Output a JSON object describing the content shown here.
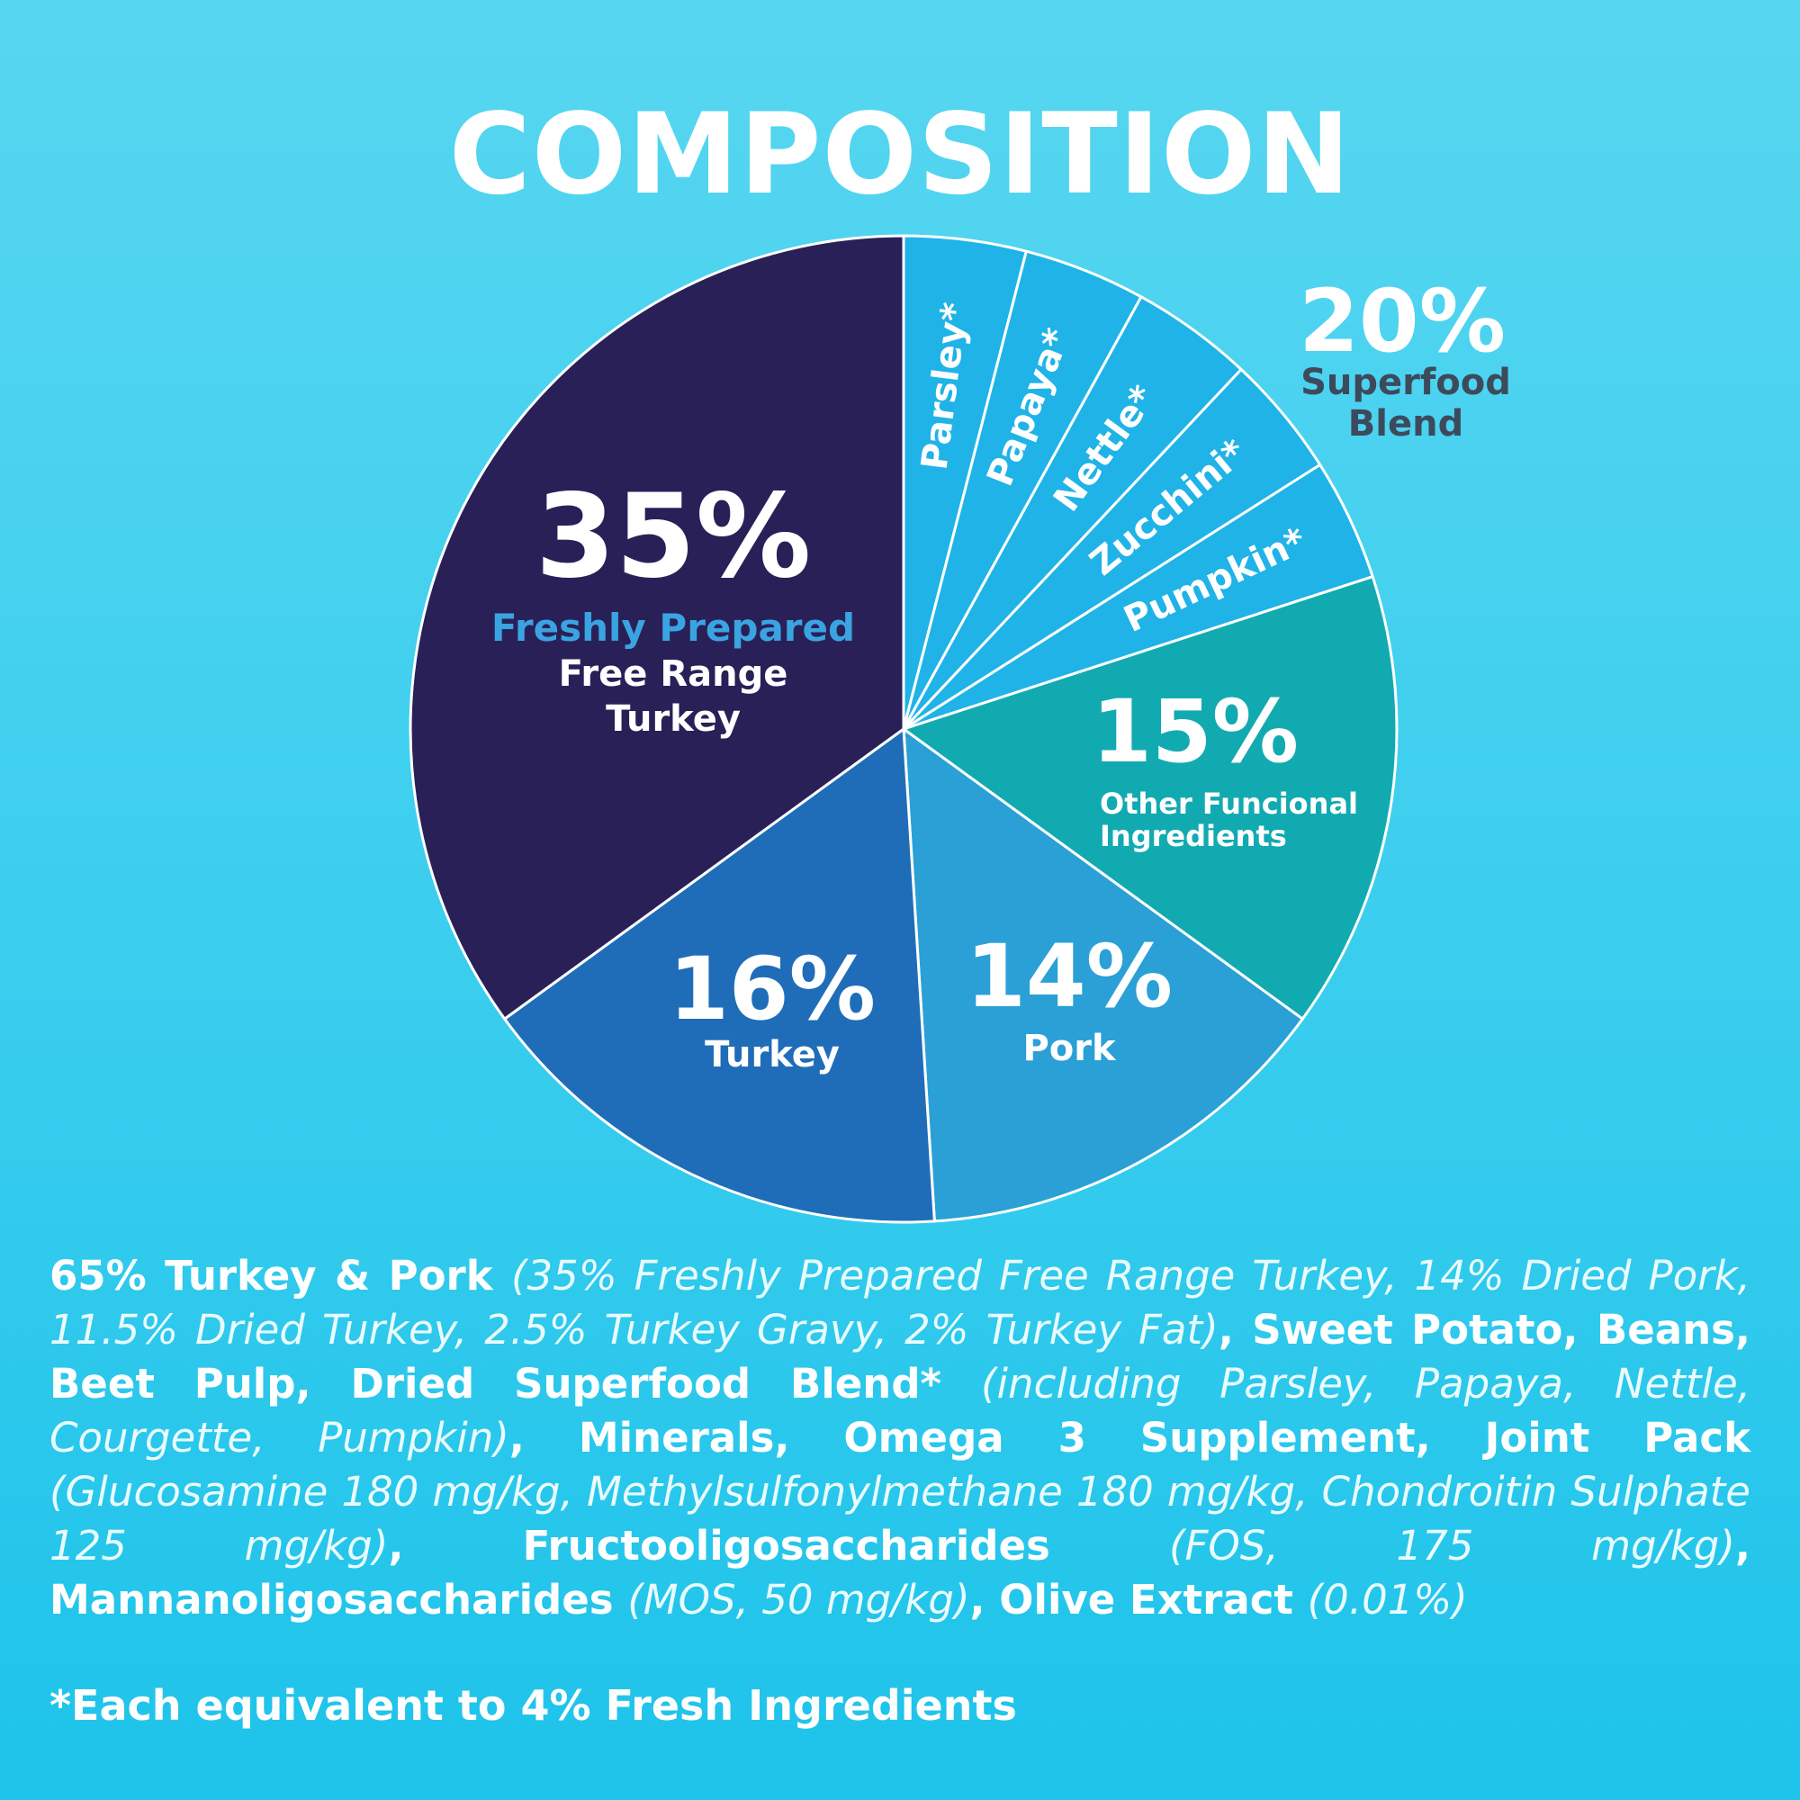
{
  "title": "COMPOSITION",
  "colors": {
    "background_top": "#57d6f0",
    "background_bottom": "#1ec3ea",
    "turkey_fresh": "#2a2058",
    "turkey": "#1f6db8",
    "pork": "#2aa0d6",
    "functional": "#12aab1",
    "superfood": "#1fb3e8",
    "accent_text": "#3aa4e2",
    "superfood_label": "#3d4a5c"
  },
  "chart_data": {
    "type": "pie",
    "title": "COMPOSITION",
    "slices": [
      {
        "key": "parsley",
        "value": 4,
        "label": "Parsley*",
        "group": "superfood"
      },
      {
        "key": "papaya",
        "value": 4,
        "label": "Papaya*",
        "group": "superfood"
      },
      {
        "key": "nettle",
        "value": 4,
        "label": "Nettle*",
        "group": "superfood"
      },
      {
        "key": "zucchini",
        "value": 4,
        "label": "Zucchini*",
        "group": "superfood"
      },
      {
        "key": "pumpkin",
        "value": 4,
        "label": "Pumpkin*",
        "group": "superfood"
      },
      {
        "key": "functional",
        "value": 15,
        "percent_label": "15%",
        "label_lines": [
          "Other Funcional",
          "Ingredients"
        ]
      },
      {
        "key": "pork",
        "value": 14,
        "percent_label": "14%",
        "label_lines": [
          "Pork"
        ]
      },
      {
        "key": "turkey",
        "value": 16,
        "percent_label": "16%",
        "label_lines": [
          "Turkey"
        ]
      },
      {
        "key": "turkey_fresh",
        "value": 35,
        "percent_label": "35%",
        "highlight_line": "Freshly Prepared",
        "label_lines": [
          "Free Range",
          "Turkey"
        ]
      }
    ],
    "superfood_group": {
      "value": 20,
      "percent_label": "20%",
      "label_lines": [
        "Superfood",
        "Blend"
      ]
    }
  },
  "ingredients": {
    "segments": [
      {
        "text": "65% Turkey & Pork ",
        "style": "b"
      },
      {
        "text": "(35% Freshly Prepared Free Range Turkey, 14% Dried Pork, 11.5% Dried Turkey, 2.5% Turkey Gravy, 2% Turkey Fat)",
        "style": "i"
      },
      {
        "text": ", Sweet Potato, Beans, Beet Pulp, Dried Superfood Blend* ",
        "style": "b"
      },
      {
        "text": "(including Parsley, Papaya, Nettle, Courgette, Pumpkin)",
        "style": "i"
      },
      {
        "text": ", Minerals, Omega 3 Supplement, Joint Pack ",
        "style": "b"
      },
      {
        "text": "(Glucosamine 180 mg/kg, Methylsulfonylmethane 180 mg/kg, Chondroitin Sulphate 125 mg/kg)",
        "style": "i"
      },
      {
        "text": ", Fructooligosaccharides ",
        "style": "b"
      },
      {
        "text": "(FOS, 175 mg/kg)",
        "style": "i"
      },
      {
        "text": ", Mannanoligosaccharides ",
        "style": "b"
      },
      {
        "text": "(MOS, 50 mg/kg)",
        "style": "i"
      },
      {
        "text": ", Olive Extract ",
        "style": "b"
      },
      {
        "text": "(0.01%)",
        "style": "i"
      }
    ]
  },
  "footnote": "*Each equivalent to 4% Fresh Ingredients"
}
